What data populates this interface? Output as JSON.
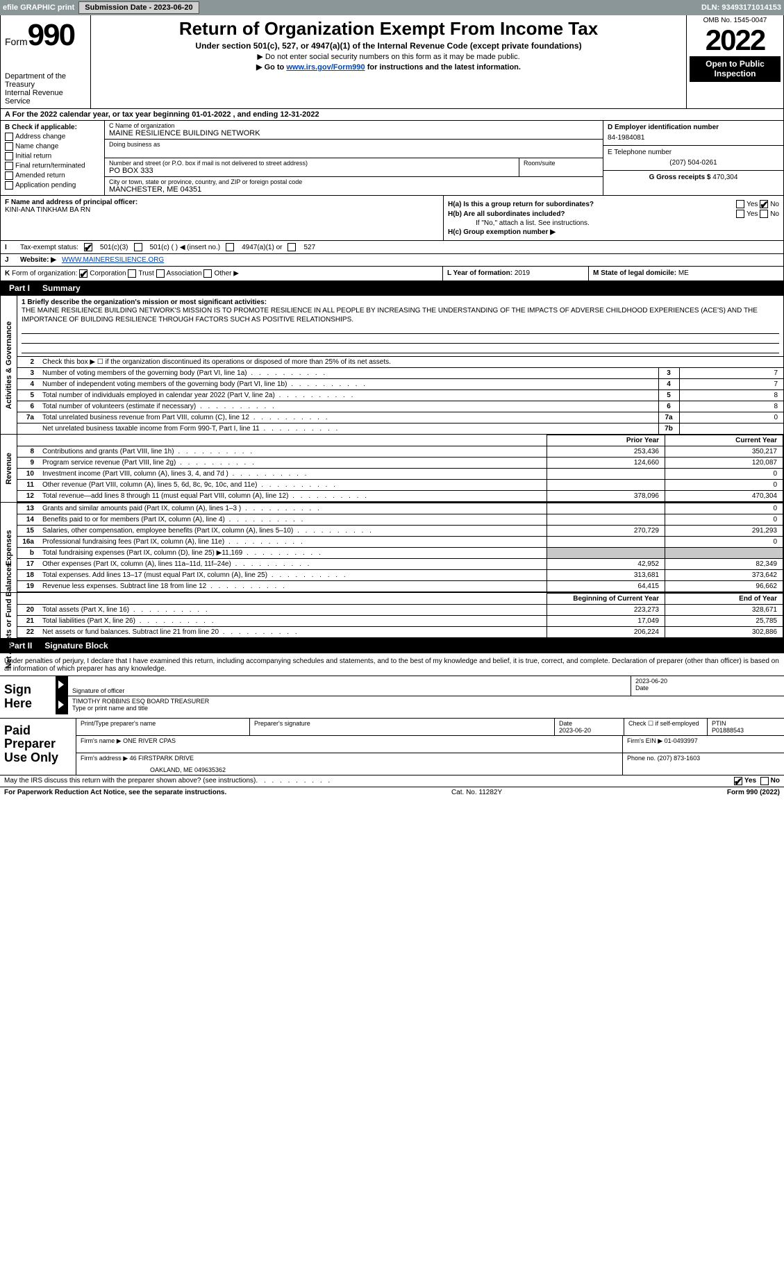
{
  "topbar": {
    "efile": "efile GRAPHIC print",
    "sub_label": "Submission Date - 2023-06-20",
    "dln": "DLN: 93493171014153"
  },
  "header": {
    "form_prefix": "Form",
    "form_number": "990",
    "dept": "Department of the Treasury",
    "irs": "Internal Revenue Service",
    "title": "Return of Organization Exempt From Income Tax",
    "sub": "Under section 501(c), 527, or 4947(a)(1) of the Internal Revenue Code (except private foundations)",
    "note1": "▶ Do not enter social security numbers on this form as it may be made public.",
    "note2_a": "▶ Go to ",
    "note2_link": "www.irs.gov/Form990",
    "note2_b": " for instructions and the latest information.",
    "omb": "OMB No. 1545-0047",
    "year": "2022",
    "open": "Open to Public Inspection"
  },
  "line_a": "A For the 2022 calendar year, or tax year beginning 01-01-2022    , and ending 12-31-2022",
  "boxB": {
    "hdr": "B Check if applicable:",
    "opts": [
      "Address change",
      "Name change",
      "Initial return",
      "Final return/terminated",
      "Amended return",
      "Application pending"
    ]
  },
  "boxC": {
    "name_lab": "C Name of organization",
    "name": "MAINE RESILIENCE BUILDING NETWORK",
    "dba_lab": "Doing business as",
    "addr_lab": "Number and street (or P.O. box if mail is not delivered to street address)",
    "room_lab": "Room/suite",
    "addr": "PO BOX 333",
    "city_lab": "City or town, state or province, country, and ZIP or foreign postal code",
    "city": "MANCHESTER, ME  04351"
  },
  "boxD": {
    "lab": "D Employer identification number",
    "val": "84-1984081"
  },
  "boxE": {
    "lab": "E Telephone number",
    "val": "(207) 504-0261"
  },
  "boxG": {
    "lab": "G Gross receipts $",
    "val": "470,304"
  },
  "boxF": {
    "lab": "F  Name and address of principal officer:",
    "val": "KINI-ANA TINKHAM BA RN"
  },
  "boxH": {
    "a": "H(a)  Is this a group return for subordinates?",
    "b": "H(b)  Are all subordinates included?",
    "b_note": "If \"No,\" attach a list. See instructions.",
    "c": "H(c)  Group exemption number ▶",
    "yes": "Yes",
    "no": "No"
  },
  "lineI": {
    "lab": "Tax-exempt status:",
    "o1": "501(c)(3)",
    "o2": "501(c) (   ) ◀ (insert no.)",
    "o3": "4947(a)(1) or",
    "o4": "527"
  },
  "lineJ": {
    "lab": "Website: ▶",
    "val": "WWW.MAINERESILIENCE.ORG"
  },
  "lineK": {
    "lab": "Form of organization:",
    "o1": "Corporation",
    "o2": "Trust",
    "o3": "Association",
    "o4": "Other ▶"
  },
  "lineL": {
    "lab": "L Year of formation:",
    "val": "2019"
  },
  "lineM": {
    "lab": "M State of legal domicile:",
    "val": "ME"
  },
  "part1": {
    "num": "Part I",
    "title": "Summary"
  },
  "vtabs": {
    "act": "Activities & Governance",
    "rev": "Revenue",
    "exp": "Expenses",
    "net": "Net Assets or Fund Balances"
  },
  "mission": {
    "lab": "1  Briefly describe the organization's mission or most significant activities:",
    "txt": "THE MAINE RESILIENCE BUILDING NETWORK'S MISSION IS TO PROMOTE RESILIENCE IN ALL PEOPLE BY INCREASING THE UNDERSTANDING OF THE IMPACTS OF ADVERSE CHILDHOOD EXPERIENCES (ACE'S) AND THE IMPORTANCE OF BUILDING RESILIENCE THROUGH FACTORS SUCH AS POSITIVE RELATIONSHIPS."
  },
  "gov_rows": [
    {
      "n": "2",
      "d": "Check this box ▶ ☐  if the organization discontinued its operations or disposed of more than 25% of its net assets.",
      "box": "",
      "v": ""
    },
    {
      "n": "3",
      "d": "Number of voting members of the governing body (Part VI, line 1a)",
      "box": "3",
      "v": "7"
    },
    {
      "n": "4",
      "d": "Number of independent voting members of the governing body (Part VI, line 1b)",
      "box": "4",
      "v": "7"
    },
    {
      "n": "5",
      "d": "Total number of individuals employed in calendar year 2022 (Part V, line 2a)",
      "box": "5",
      "v": "8"
    },
    {
      "n": "6",
      "d": "Total number of volunteers (estimate if necessary)",
      "box": "6",
      "v": "8"
    },
    {
      "n": "7a",
      "d": "Total unrelated business revenue from Part VIII, column (C), line 12",
      "box": "7a",
      "v": "0"
    },
    {
      "n": " ",
      "d": "Net unrelated business taxable income from Form 990-T, Part I, line 11",
      "box": "7b",
      "v": ""
    }
  ],
  "col_hdr": {
    "py": "Prior Year",
    "cy": "Current Year"
  },
  "rev_rows": [
    {
      "n": "8",
      "d": "Contributions and grants (Part VIII, line 1h)",
      "py": "253,436",
      "cy": "350,217"
    },
    {
      "n": "9",
      "d": "Program service revenue (Part VIII, line 2g)",
      "py": "124,660",
      "cy": "120,087"
    },
    {
      "n": "10",
      "d": "Investment income (Part VIII, column (A), lines 3, 4, and 7d )",
      "py": "",
      "cy": "0"
    },
    {
      "n": "11",
      "d": "Other revenue (Part VIII, column (A), lines 5, 6d, 8c, 9c, 10c, and 11e)",
      "py": "",
      "cy": "0"
    },
    {
      "n": "12",
      "d": "Total revenue—add lines 8 through 11 (must equal Part VIII, column (A), line 12)",
      "py": "378,096",
      "cy": "470,304"
    }
  ],
  "exp_rows": [
    {
      "n": "13",
      "d": "Grants and similar amounts paid (Part IX, column (A), lines 1–3 )",
      "py": "",
      "cy": "0"
    },
    {
      "n": "14",
      "d": "Benefits paid to or for members (Part IX, column (A), line 4)",
      "py": "",
      "cy": "0"
    },
    {
      "n": "15",
      "d": "Salaries, other compensation, employee benefits (Part IX, column (A), lines 5–10)",
      "py": "270,729",
      "cy": "291,293"
    },
    {
      "n": "16a",
      "d": "Professional fundraising fees (Part IX, column (A), line 11e)",
      "py": "",
      "cy": "0"
    },
    {
      "n": "b",
      "d": "Total fundraising expenses (Part IX, column (D), line 25) ▶11,169",
      "py": "GREY",
      "cy": "GREY"
    },
    {
      "n": "17",
      "d": "Other expenses (Part IX, column (A), lines 11a–11d, 11f–24e)",
      "py": "42,952",
      "cy": "82,349"
    },
    {
      "n": "18",
      "d": "Total expenses. Add lines 13–17 (must equal Part IX, column (A), line 25)",
      "py": "313,681",
      "cy": "373,642"
    },
    {
      "n": "19",
      "d": "Revenue less expenses. Subtract line 18 from line 12",
      "py": "64,415",
      "cy": "96,662"
    }
  ],
  "net_hdr": {
    "py": "Beginning of Current Year",
    "cy": "End of Year"
  },
  "net_rows": [
    {
      "n": "20",
      "d": "Total assets (Part X, line 16)",
      "py": "223,273",
      "cy": "328,671"
    },
    {
      "n": "21",
      "d": "Total liabilities (Part X, line 26)",
      "py": "17,049",
      "cy": "25,785"
    },
    {
      "n": "22",
      "d": "Net assets or fund balances. Subtract line 21 from line 20",
      "py": "206,224",
      "cy": "302,886"
    }
  ],
  "part2": {
    "num": "Part II",
    "title": "Signature Block"
  },
  "sig": {
    "decl": "Under penalties of perjury, I declare that I have examined this return, including accompanying schedules and statements, and to the best of my knowledge and belief, it is true, correct, and complete. Declaration of preparer (other than officer) is based on all information of which preparer has any knowledge.",
    "here": "Sign Here",
    "sig_lab": "Signature of officer",
    "date_lab": "Date",
    "date": "2023-06-20",
    "name": "TIMOTHY ROBBINS ESQ  BOARD TREASURER",
    "name_lab": "Type or print name and title"
  },
  "prep": {
    "lab": "Paid Preparer Use Only",
    "pname_lab": "Print/Type preparer's name",
    "psig_lab": "Preparer's signature",
    "pdate_lab": "Date",
    "pdate": "2023-06-20",
    "pcheck": "Check ☐ if self-employed",
    "ptin_lab": "PTIN",
    "ptin": "P01888543",
    "firm_lab": "Firm's name   ▶",
    "firm": "ONE RIVER CPAS",
    "ein_lab": "Firm's EIN ▶",
    "ein": "01-0493997",
    "addr_lab": "Firm's address ▶",
    "addr1": "46 FIRSTPARK DRIVE",
    "addr2": "OAKLAND, ME  049635362",
    "phone_lab": "Phone no.",
    "phone": "(207) 873-1603"
  },
  "discuss": {
    "q": "May the IRS discuss this return with the preparer shown above? (see instructions)",
    "yes": "Yes",
    "no": "No"
  },
  "footer": {
    "l": "For Paperwork Reduction Act Notice, see the separate instructions.",
    "m": "Cat. No. 11282Y",
    "r": "Form 990 (2022)"
  }
}
